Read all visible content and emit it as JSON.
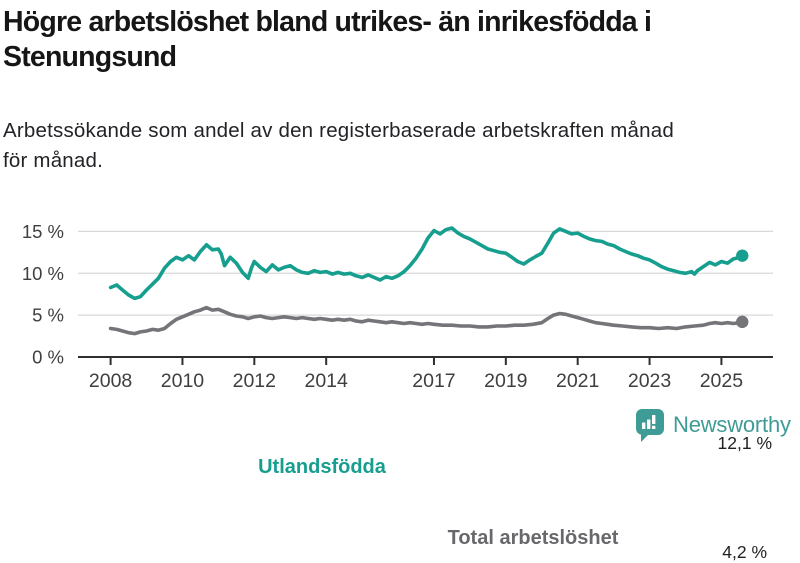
{
  "header": {
    "title_line1": "Högre arbetslöshet bland utrikes- än inrikesfödda i",
    "title_line2": "Stenungsund",
    "subtitle_line1": "Arbetssökande som andel av den registerbaserade arbetskraften månad",
    "subtitle_line2": "för månad."
  },
  "chart_data": {
    "type": "line",
    "title": "Högre arbetslöshet bland utrikes- än inrikesfödda i Stenungsund",
    "subtitle": "Arbetssökande som andel av den registerbaserade arbetskraften månad för månad.",
    "xlabel": "",
    "ylabel": "",
    "ylim": [
      0,
      16.5
    ],
    "xlim": [
      2007.1,
      2026.4
    ],
    "grid": "horizontal",
    "legend_position": "inline-on-lines",
    "y_ticks": [
      {
        "label": "0 %",
        "value": 0
      },
      {
        "label": "5 %",
        "value": 5
      },
      {
        "label": "10 %",
        "value": 10
      },
      {
        "label": "15 %",
        "value": 15
      }
    ],
    "x_ticks": [
      {
        "label": "2008",
        "value": 2008
      },
      {
        "label": "2010",
        "value": 2010
      },
      {
        "label": "2012",
        "value": 2012
      },
      {
        "label": "2014",
        "value": 2014
      },
      {
        "label": "2017",
        "value": 2017
      },
      {
        "label": "2019",
        "value": 2019
      },
      {
        "label": "2021",
        "value": 2021
      },
      {
        "label": "2023",
        "value": 2023
      },
      {
        "label": "2025",
        "value": 2025
      }
    ],
    "series": [
      {
        "name": "Utlandsfödda",
        "color": "#169E8E",
        "end_label": "12,1 %",
        "end_value": 12.1,
        "points": [
          [
            2008.0,
            8.3
          ],
          [
            2008.17,
            8.6
          ],
          [
            2008.33,
            8.0
          ],
          [
            2008.5,
            7.4
          ],
          [
            2008.67,
            7.0
          ],
          [
            2008.83,
            7.2
          ],
          [
            2009.0,
            8.0
          ],
          [
            2009.17,
            8.7
          ],
          [
            2009.33,
            9.4
          ],
          [
            2009.5,
            10.6
          ],
          [
            2009.67,
            11.4
          ],
          [
            2009.83,
            11.9
          ],
          [
            2010.0,
            11.6
          ],
          [
            2010.17,
            12.1
          ],
          [
            2010.33,
            11.6
          ],
          [
            2010.5,
            12.6
          ],
          [
            2010.67,
            13.4
          ],
          [
            2010.83,
            12.8
          ],
          [
            2011.0,
            12.9
          ],
          [
            2011.08,
            12.3
          ],
          [
            2011.17,
            10.9
          ],
          [
            2011.33,
            11.9
          ],
          [
            2011.5,
            11.2
          ],
          [
            2011.67,
            10.1
          ],
          [
            2011.83,
            9.4
          ],
          [
            2011.92,
            10.6
          ],
          [
            2012.0,
            11.4
          ],
          [
            2012.17,
            10.7
          ],
          [
            2012.33,
            10.2
          ],
          [
            2012.5,
            11.0
          ],
          [
            2012.67,
            10.4
          ],
          [
            2012.83,
            10.7
          ],
          [
            2013.0,
            10.9
          ],
          [
            2013.17,
            10.4
          ],
          [
            2013.33,
            10.1
          ],
          [
            2013.5,
            10.0
          ],
          [
            2013.67,
            10.3
          ],
          [
            2013.83,
            10.1
          ],
          [
            2014.0,
            10.2
          ],
          [
            2014.17,
            9.9
          ],
          [
            2014.33,
            10.1
          ],
          [
            2014.5,
            9.9
          ],
          [
            2014.67,
            10.0
          ],
          [
            2014.83,
            9.7
          ],
          [
            2015.0,
            9.5
          ],
          [
            2015.17,
            9.8
          ],
          [
            2015.33,
            9.5
          ],
          [
            2015.5,
            9.2
          ],
          [
            2015.67,
            9.6
          ],
          [
            2015.83,
            9.4
          ],
          [
            2016.0,
            9.7
          ],
          [
            2016.17,
            10.2
          ],
          [
            2016.33,
            10.9
          ],
          [
            2016.5,
            11.8
          ],
          [
            2016.67,
            12.9
          ],
          [
            2016.83,
            14.2
          ],
          [
            2017.0,
            15.1
          ],
          [
            2017.17,
            14.7
          ],
          [
            2017.33,
            15.2
          ],
          [
            2017.5,
            15.4
          ],
          [
            2017.67,
            14.8
          ],
          [
            2017.83,
            14.4
          ],
          [
            2018.0,
            14.1
          ],
          [
            2018.17,
            13.7
          ],
          [
            2018.33,
            13.3
          ],
          [
            2018.5,
            12.9
          ],
          [
            2018.67,
            12.7
          ],
          [
            2018.83,
            12.5
          ],
          [
            2019.0,
            12.4
          ],
          [
            2019.17,
            11.9
          ],
          [
            2019.33,
            11.4
          ],
          [
            2019.5,
            11.1
          ],
          [
            2019.67,
            11.6
          ],
          [
            2019.83,
            12.0
          ],
          [
            2020.0,
            12.4
          ],
          [
            2020.17,
            13.6
          ],
          [
            2020.33,
            14.8
          ],
          [
            2020.5,
            15.3
          ],
          [
            2020.67,
            15.0
          ],
          [
            2020.83,
            14.7
          ],
          [
            2021.0,
            14.8
          ],
          [
            2021.17,
            14.4
          ],
          [
            2021.33,
            14.1
          ],
          [
            2021.5,
            13.9
          ],
          [
            2021.67,
            13.8
          ],
          [
            2021.83,
            13.5
          ],
          [
            2022.0,
            13.3
          ],
          [
            2022.17,
            12.9
          ],
          [
            2022.33,
            12.6
          ],
          [
            2022.5,
            12.3
          ],
          [
            2022.67,
            12.1
          ],
          [
            2022.83,
            11.8
          ],
          [
            2023.0,
            11.6
          ],
          [
            2023.17,
            11.2
          ],
          [
            2023.33,
            10.8
          ],
          [
            2023.5,
            10.5
          ],
          [
            2023.67,
            10.3
          ],
          [
            2023.83,
            10.1
          ],
          [
            2024.0,
            10.0
          ],
          [
            2024.17,
            10.2
          ],
          [
            2024.25,
            9.9
          ],
          [
            2024.33,
            10.3
          ],
          [
            2024.5,
            10.8
          ],
          [
            2024.67,
            11.3
          ],
          [
            2024.83,
            11.0
          ],
          [
            2025.0,
            11.4
          ],
          [
            2025.17,
            11.2
          ],
          [
            2025.33,
            11.7
          ],
          [
            2025.5,
            11.9
          ],
          [
            2025.58,
            12.1
          ]
        ]
      },
      {
        "name": "Total arbetslöshet",
        "color": "#757579",
        "end_label": "4,2 %",
        "end_value": 4.2,
        "points": [
          [
            2008.0,
            3.4
          ],
          [
            2008.17,
            3.3
          ],
          [
            2008.33,
            3.1
          ],
          [
            2008.5,
            2.9
          ],
          [
            2008.67,
            2.8
          ],
          [
            2008.83,
            3.0
          ],
          [
            2009.0,
            3.1
          ],
          [
            2009.17,
            3.3
          ],
          [
            2009.33,
            3.2
          ],
          [
            2009.5,
            3.4
          ],
          [
            2009.67,
            4.0
          ],
          [
            2009.83,
            4.5
          ],
          [
            2010.0,
            4.8
          ],
          [
            2010.17,
            5.1
          ],
          [
            2010.33,
            5.4
          ],
          [
            2010.5,
            5.6
          ],
          [
            2010.67,
            5.9
          ],
          [
            2010.83,
            5.6
          ],
          [
            2011.0,
            5.7
          ],
          [
            2011.17,
            5.4
          ],
          [
            2011.33,
            5.1
          ],
          [
            2011.5,
            4.9
          ],
          [
            2011.67,
            4.8
          ],
          [
            2011.83,
            4.6
          ],
          [
            2012.0,
            4.8
          ],
          [
            2012.17,
            4.9
          ],
          [
            2012.33,
            4.7
          ],
          [
            2012.5,
            4.6
          ],
          [
            2012.67,
            4.7
          ],
          [
            2012.83,
            4.8
          ],
          [
            2013.0,
            4.7
          ],
          [
            2013.17,
            4.6
          ],
          [
            2013.33,
            4.7
          ],
          [
            2013.5,
            4.6
          ],
          [
            2013.67,
            4.5
          ],
          [
            2013.83,
            4.6
          ],
          [
            2014.0,
            4.5
          ],
          [
            2014.17,
            4.4
          ],
          [
            2014.33,
            4.5
          ],
          [
            2014.5,
            4.4
          ],
          [
            2014.67,
            4.5
          ],
          [
            2014.83,
            4.3
          ],
          [
            2015.0,
            4.2
          ],
          [
            2015.17,
            4.4
          ],
          [
            2015.33,
            4.3
          ],
          [
            2015.5,
            4.2
          ],
          [
            2015.67,
            4.1
          ],
          [
            2015.83,
            4.2
          ],
          [
            2016.0,
            4.1
          ],
          [
            2016.17,
            4.0
          ],
          [
            2016.33,
            4.1
          ],
          [
            2016.5,
            4.0
          ],
          [
            2016.67,
            3.9
          ],
          [
            2016.83,
            4.0
          ],
          [
            2017.0,
            3.9
          ],
          [
            2017.25,
            3.8
          ],
          [
            2017.5,
            3.8
          ],
          [
            2017.75,
            3.7
          ],
          [
            2018.0,
            3.7
          ],
          [
            2018.25,
            3.6
          ],
          [
            2018.5,
            3.6
          ],
          [
            2018.75,
            3.7
          ],
          [
            2019.0,
            3.7
          ],
          [
            2019.25,
            3.8
          ],
          [
            2019.5,
            3.8
          ],
          [
            2019.75,
            3.9
          ],
          [
            2020.0,
            4.1
          ],
          [
            2020.17,
            4.6
          ],
          [
            2020.33,
            5.0
          ],
          [
            2020.5,
            5.2
          ],
          [
            2020.67,
            5.1
          ],
          [
            2020.83,
            4.9
          ],
          [
            2021.0,
            4.7
          ],
          [
            2021.17,
            4.5
          ],
          [
            2021.33,
            4.3
          ],
          [
            2021.5,
            4.1
          ],
          [
            2021.67,
            4.0
          ],
          [
            2021.83,
            3.9
          ],
          [
            2022.0,
            3.8
          ],
          [
            2022.25,
            3.7
          ],
          [
            2022.5,
            3.6
          ],
          [
            2022.75,
            3.5
          ],
          [
            2023.0,
            3.5
          ],
          [
            2023.25,
            3.4
          ],
          [
            2023.5,
            3.5
          ],
          [
            2023.75,
            3.4
          ],
          [
            2024.0,
            3.6
          ],
          [
            2024.25,
            3.7
          ],
          [
            2024.5,
            3.8
          ],
          [
            2024.67,
            4.0
          ],
          [
            2024.83,
            4.1
          ],
          [
            2025.0,
            4.0
          ],
          [
            2025.17,
            4.1
          ],
          [
            2025.33,
            4.0
          ],
          [
            2025.5,
            4.1
          ],
          [
            2025.58,
            4.2
          ]
        ]
      }
    ]
  },
  "branding": {
    "logo_text": "Newsworthy",
    "brand_color": "#3F9B95",
    "logo_icon": "bar-chart-speech-bubble-icon"
  },
  "colors": {
    "title": "#161616",
    "subtitle": "#222326",
    "axis_text": "#3f3f42",
    "axis_line": "#2f2f32",
    "gridline": "#d9d9d9",
    "background": "#ffffff"
  }
}
